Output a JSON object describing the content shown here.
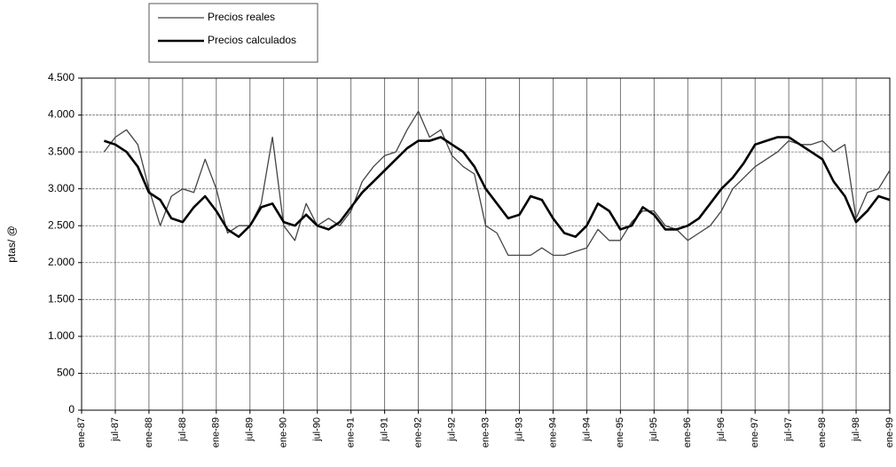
{
  "chart_data": {
    "type": "line",
    "ylabel": "ptas/ @",
    "categories": [
      "ene-87",
      null,
      null,
      "jul-87",
      null,
      null,
      "ene-88",
      null,
      null,
      "jul-88",
      null,
      null,
      "ene-89",
      null,
      null,
      "jul-89",
      null,
      null,
      "ene-90",
      null,
      null,
      "jul-90",
      null,
      null,
      "ene-91",
      null,
      null,
      "jul-91",
      null,
      null,
      "ene-92",
      null,
      null,
      "jul-92",
      null,
      null,
      "ene-93",
      null,
      null,
      "jul-93",
      null,
      null,
      "ene-94",
      null,
      null,
      "jul-94",
      null,
      null,
      "ene-95",
      null,
      null,
      "jul-95",
      null,
      null,
      "ene-96",
      null,
      null,
      "jul-96",
      null,
      null,
      "ene-97",
      null,
      null,
      "jul-97",
      null,
      null,
      "ene-98",
      null,
      null,
      "jul-98",
      null,
      null,
      "ene-99"
    ],
    "series": [
      {
        "name": "Precios reales",
        "color": "#444444",
        "width": 1.3,
        "values": [
          null,
          null,
          3500,
          3700,
          3800,
          3600,
          3000,
          2500,
          2900,
          3000,
          2950,
          3400,
          3000,
          2400,
          2500,
          2500,
          2800,
          3700,
          2500,
          2300,
          2800,
          2500,
          2600,
          2500,
          2700,
          3100,
          3300,
          3450,
          3500,
          3800,
          4050,
          3700,
          3800,
          3450,
          3300,
          3200,
          2500,
          2400,
          2100,
          2100,
          2100,
          2200,
          2100,
          2100,
          2150,
          2200,
          2450,
          2300,
          2300,
          2550,
          2700,
          2700,
          2500,
          2450,
          2300,
          2400,
          2500,
          2700,
          3000,
          3150,
          3300,
          3400,
          3500,
          3650,
          3600,
          3600,
          3650,
          3500,
          3600,
          2600,
          2950,
          3000,
          3250
        ]
      },
      {
        "name": "Precios calculados",
        "color": "#000000",
        "width": 2.6,
        "values": [
          null,
          null,
          3650,
          3600,
          3500,
          3300,
          2950,
          2850,
          2600,
          2550,
          2750,
          2900,
          2700,
          2450,
          2350,
          2500,
          2750,
          2800,
          2550,
          2500,
          2650,
          2500,
          2450,
          2550,
          2750,
          2950,
          3100,
          3250,
          3400,
          3550,
          3650,
          3650,
          3700,
          3600,
          3500,
          3300,
          3000,
          2800,
          2600,
          2650,
          2900,
          2850,
          2600,
          2400,
          2350,
          2500,
          2800,
          2700,
          2450,
          2500,
          2750,
          2650,
          2450,
          2450,
          2500,
          2600,
          2800,
          3000,
          3150,
          3350,
          3600,
          3650,
          3700,
          3700,
          3600,
          3500,
          3400,
          3100,
          2900,
          2550,
          2700,
          2900,
          2850
        ]
      }
    ],
    "ylim": [
      0,
      4500
    ],
    "yticks": [
      0,
      500,
      {
        "value": 1000,
        "label": "1.000"
      },
      {
        "value": 1500,
        "label": "1.500"
      },
      {
        "value": 2000,
        "label": "2.000"
      },
      {
        "value": 2500,
        "label": "2.500"
      },
      {
        "value": 3000,
        "label": "3.000"
      },
      {
        "value": 3500,
        "label": "3.500"
      },
      {
        "value": 4000,
        "label": "4.000"
      },
      {
        "value": 4500,
        "label": "4.500"
      }
    ],
    "grid": true,
    "legend": "top-left"
  }
}
